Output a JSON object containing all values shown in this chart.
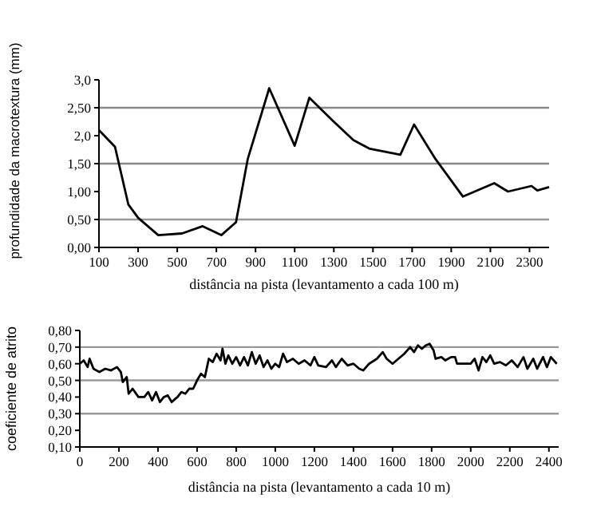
{
  "chart_data": [
    {
      "type": "line",
      "xlabel": "distância na pista (levantamento a cada 100 m)",
      "ylabel": "profundidade da macrotextura (mm)",
      "xlim": [
        100,
        2400
      ],
      "xticks": [
        100,
        300,
        500,
        700,
        900,
        1100,
        1300,
        1500,
        1700,
        1900,
        2100,
        2300
      ],
      "ylim": [
        0,
        3
      ],
      "yticks": [
        {
          "value": 0,
          "label": "0,00"
        },
        {
          "value": 0.5,
          "label": "0,50"
        },
        {
          "value": 1,
          "label": "1,00"
        },
        {
          "value": 1.5,
          "label": "1,50"
        },
        {
          "value": 2,
          "label": "2,0"
        },
        {
          "value": 2.5,
          "label": "2,50"
        },
        {
          "value": 3,
          "label": "3,0"
        }
      ],
      "grid": false,
      "marker": "none",
      "line_style": "solid",
      "ref_lines": [
        {
          "axis": "y",
          "value": 0.5,
          "color": "#999999"
        },
        {
          "axis": "y",
          "value": 1.5,
          "color": "#888888"
        },
        {
          "axis": "y",
          "value": 2.5,
          "color": "#888888"
        }
      ],
      "series": [
        {
          "color": "#000000",
          "x": [
            100,
            182,
            250,
            300,
            403,
            524,
            630,
            725,
            800,
            860,
            970,
            1100,
            1175,
            1300,
            1400,
            1480,
            1640,
            1710,
            1820,
            1960,
            2120,
            2190,
            2310,
            2340,
            2400
          ],
          "values": [
            2.1,
            1.8,
            0.77,
            0.53,
            0.22,
            0.25,
            0.38,
            0.22,
            0.45,
            1.58,
            2.85,
            1.82,
            2.68,
            2.25,
            1.92,
            1.77,
            1.66,
            2.2,
            1.58,
            0.91,
            1.15,
            1.0,
            1.1,
            1.02,
            1.08
          ]
        }
      ]
    },
    {
      "type": "line",
      "xlabel": "distância na pista (levantamento a cada 10 m)",
      "ylabel": "coeficiente de atrito",
      "xlim": [
        0,
        2450
      ],
      "xticks": [
        0,
        200,
        400,
        600,
        800,
        1000,
        1200,
        1400,
        1600,
        1800,
        2000,
        2200,
        2400
      ],
      "ylim": [
        0.1,
        0.8
      ],
      "yticks": [
        {
          "value": 0.1,
          "label": "0,10"
        },
        {
          "value": 0.2,
          "label": "0,20"
        },
        {
          "value": 0.3,
          "label": "0,30"
        },
        {
          "value": 0.4,
          "label": "0,40"
        },
        {
          "value": 0.5,
          "label": "0,50"
        },
        {
          "value": 0.6,
          "label": "0,60"
        },
        {
          "value": 0.7,
          "label": "0,70"
        },
        {
          "value": 0.8,
          "label": "0,80"
        }
      ],
      "grid": false,
      "marker": "none",
      "line_style": "solid",
      "ref_lines": [
        {
          "axis": "y",
          "value": 0.3,
          "color": "#999999"
        },
        {
          "axis": "y",
          "value": 0.5,
          "color": "#999999"
        },
        {
          "axis": "y",
          "value": 0.7,
          "color": "#999999"
        }
      ],
      "series": [
        {
          "color": "#000000",
          "x": [
            0,
            20,
            40,
            50,
            70,
            100,
            130,
            160,
            190,
            210,
            220,
            240,
            250,
            270,
            300,
            330,
            350,
            370,
            390,
            410,
            430,
            450,
            470,
            500,
            520,
            540,
            560,
            580,
            600,
            620,
            640,
            660,
            680,
            700,
            720,
            730,
            745,
            760,
            780,
            800,
            820,
            840,
            860,
            880,
            900,
            920,
            940,
            960,
            980,
            1000,
            1020,
            1040,
            1060,
            1090,
            1120,
            1150,
            1180,
            1200,
            1220,
            1260,
            1290,
            1310,
            1340,
            1370,
            1400,
            1430,
            1450,
            1480,
            1520,
            1550,
            1570,
            1600,
            1630,
            1660,
            1690,
            1710,
            1730,
            1750,
            1770,
            1790,
            1810,
            1820,
            1850,
            1870,
            1900,
            1920,
            1930,
            1960,
            2000,
            2020,
            2040,
            2060,
            2080,
            2100,
            2120,
            2150,
            2180,
            2210,
            2240,
            2270,
            2290,
            2320,
            2340,
            2370,
            2390,
            2410,
            2440
          ],
          "values": [
            0.6,
            0.62,
            0.58,
            0.63,
            0.57,
            0.55,
            0.57,
            0.56,
            0.58,
            0.55,
            0.49,
            0.52,
            0.42,
            0.45,
            0.4,
            0.4,
            0.43,
            0.38,
            0.43,
            0.37,
            0.4,
            0.41,
            0.37,
            0.4,
            0.43,
            0.42,
            0.45,
            0.45,
            0.5,
            0.54,
            0.52,
            0.63,
            0.61,
            0.66,
            0.62,
            0.69,
            0.6,
            0.65,
            0.6,
            0.64,
            0.59,
            0.64,
            0.59,
            0.67,
            0.6,
            0.65,
            0.58,
            0.62,
            0.57,
            0.6,
            0.58,
            0.66,
            0.61,
            0.63,
            0.6,
            0.62,
            0.59,
            0.64,
            0.59,
            0.58,
            0.62,
            0.58,
            0.63,
            0.59,
            0.6,
            0.57,
            0.56,
            0.6,
            0.63,
            0.67,
            0.63,
            0.6,
            0.63,
            0.66,
            0.7,
            0.67,
            0.71,
            0.69,
            0.71,
            0.72,
            0.68,
            0.63,
            0.64,
            0.62,
            0.64,
            0.64,
            0.6,
            0.6,
            0.6,
            0.63,
            0.56,
            0.64,
            0.61,
            0.65,
            0.6,
            0.61,
            0.59,
            0.62,
            0.58,
            0.64,
            0.57,
            0.63,
            0.57,
            0.64,
            0.58,
            0.64,
            0.6
          ]
        }
      ]
    }
  ]
}
